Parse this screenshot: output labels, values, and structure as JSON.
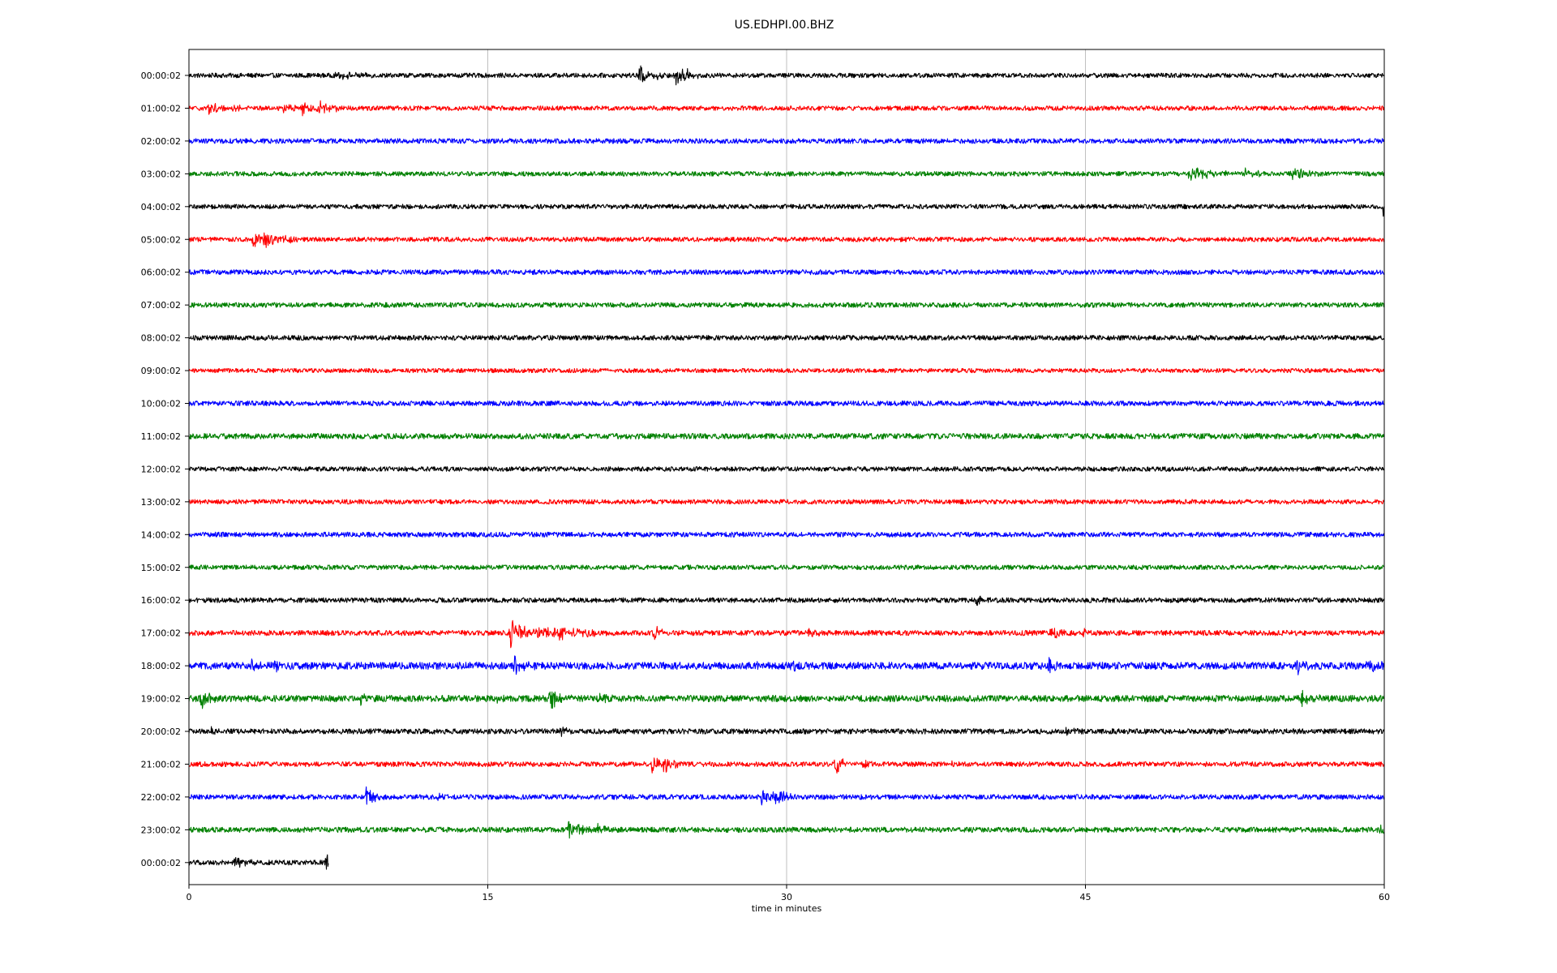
{
  "chart_data": {
    "type": "line",
    "title": "US.EDHPI.00.BHZ",
    "xlabel": "time in minutes",
    "ylabel": "",
    "xlim": [
      0,
      60
    ],
    "x_ticks": [
      "0",
      "15",
      "30",
      "45",
      "60"
    ],
    "x_tick_values": [
      0,
      15,
      30,
      45,
      60
    ],
    "grid": "vertical lines at x ticks",
    "trace_colors": [
      "#000000",
      "#ff0000",
      "#0000ff",
      "#008000"
    ],
    "trace_amplitude_units": "relative (0-1, 1 ≈ half of row spacing)",
    "rows": [
      {
        "label": "00:00:02",
        "color": "#000000",
        "noise": 0.14,
        "end_minute": 60,
        "events": [
          {
            "t": 22.6,
            "amp": 0.75,
            "dur": 0.3
          },
          {
            "t": 23.5,
            "amp": 0.3,
            "dur": 0.5
          },
          {
            "t": 24.4,
            "amp": 0.8,
            "dur": 0.4
          },
          {
            "t": 24.8,
            "amp": 0.45,
            "dur": 0.4
          },
          {
            "t": 7.4,
            "amp": 0.18,
            "dur": 1.0
          }
        ]
      },
      {
        "label": "01:00:02",
        "color": "#ff0000",
        "noise": 0.14,
        "end_minute": 60,
        "events": [
          {
            "t": 1.0,
            "amp": 0.45,
            "dur": 0.4
          },
          {
            "t": 2.2,
            "amp": 0.25,
            "dur": 0.3
          },
          {
            "t": 4.7,
            "amp": 0.3,
            "dur": 0.6
          },
          {
            "t": 5.7,
            "amp": 0.4,
            "dur": 0.5
          },
          {
            "t": 6.5,
            "amp": 0.5,
            "dur": 0.6
          }
        ]
      },
      {
        "label": "02:00:02",
        "color": "#0000ff",
        "noise": 0.15,
        "end_minute": 60,
        "events": []
      },
      {
        "label": "03:00:02",
        "color": "#008000",
        "noise": 0.14,
        "end_minute": 60,
        "events": [
          {
            "t": 50.2,
            "amp": 0.6,
            "dur": 0.8
          },
          {
            "t": 53.0,
            "amp": 0.3,
            "dur": 0.5
          },
          {
            "t": 55.3,
            "amp": 0.55,
            "dur": 0.6
          }
        ]
      },
      {
        "label": "04:00:02",
        "color": "#000000",
        "noise": 0.14,
        "end_minute": 60,
        "events": [
          {
            "t": 59.9,
            "amp": 0.55,
            "dur": 0.3
          }
        ]
      },
      {
        "label": "05:00:02",
        "color": "#ff0000",
        "noise": 0.14,
        "end_minute": 60,
        "events": [
          {
            "t": 3.2,
            "amp": 0.5,
            "dur": 0.5
          },
          {
            "t": 3.7,
            "amp": 0.7,
            "dur": 0.7
          }
        ]
      },
      {
        "label": "06:00:02",
        "color": "#0000ff",
        "noise": 0.15,
        "end_minute": 60,
        "events": []
      },
      {
        "label": "07:00:02",
        "color": "#008000",
        "noise": 0.15,
        "end_minute": 60,
        "events": []
      },
      {
        "label": "08:00:02",
        "color": "#000000",
        "noise": 0.15,
        "end_minute": 60,
        "events": []
      },
      {
        "label": "09:00:02",
        "color": "#ff0000",
        "noise": 0.13,
        "end_minute": 60,
        "events": []
      },
      {
        "label": "10:00:02",
        "color": "#0000ff",
        "noise": 0.15,
        "end_minute": 60,
        "events": []
      },
      {
        "label": "11:00:02",
        "color": "#008000",
        "noise": 0.17,
        "end_minute": 60,
        "events": []
      },
      {
        "label": "12:00:02",
        "color": "#000000",
        "noise": 0.14,
        "end_minute": 60,
        "events": []
      },
      {
        "label": "13:00:02",
        "color": "#ff0000",
        "noise": 0.14,
        "end_minute": 60,
        "events": []
      },
      {
        "label": "14:00:02",
        "color": "#0000ff",
        "noise": 0.15,
        "end_minute": 60,
        "events": []
      },
      {
        "label": "15:00:02",
        "color": "#008000",
        "noise": 0.14,
        "end_minute": 60,
        "events": []
      },
      {
        "label": "16:00:02",
        "color": "#000000",
        "noise": 0.15,
        "end_minute": 60,
        "events": [
          {
            "t": 39.5,
            "amp": 0.4,
            "dur": 0.3
          }
        ]
      },
      {
        "label": "17:00:02",
        "color": "#ff0000",
        "noise": 0.16,
        "end_minute": 60,
        "events": [
          {
            "t": 16.1,
            "amp": 1.0,
            "dur": 0.6
          },
          {
            "t": 17.5,
            "amp": 0.45,
            "dur": 1.5
          },
          {
            "t": 18.6,
            "amp": 0.35,
            "dur": 0.8
          },
          {
            "t": 23.3,
            "amp": 0.5,
            "dur": 0.4
          },
          {
            "t": 31.0,
            "amp": 0.2,
            "dur": 0.6
          },
          {
            "t": 43.2,
            "amp": 0.45,
            "dur": 0.4
          },
          {
            "t": 44.8,
            "amp": 0.3,
            "dur": 0.3
          }
        ]
      },
      {
        "label": "18:00:02",
        "color": "#0000ff",
        "noise": 0.22,
        "end_minute": 60,
        "events": [
          {
            "t": 3.1,
            "amp": 0.35,
            "dur": 0.3
          },
          {
            "t": 4.3,
            "amp": 0.4,
            "dur": 0.3
          },
          {
            "t": 16.3,
            "amp": 0.55,
            "dur": 0.5
          },
          {
            "t": 28.2,
            "amp": 0.35,
            "dur": 0.3
          },
          {
            "t": 30.2,
            "amp": 0.35,
            "dur": 0.3
          },
          {
            "t": 43.1,
            "amp": 0.4,
            "dur": 0.4
          },
          {
            "t": 55.6,
            "amp": 0.5,
            "dur": 0.4
          },
          {
            "t": 59.1,
            "amp": 0.4,
            "dur": 0.5
          }
        ]
      },
      {
        "label": "19:00:02",
        "color": "#008000",
        "noise": 0.2,
        "end_minute": 60,
        "events": [
          {
            "t": 0.6,
            "amp": 0.65,
            "dur": 0.3
          },
          {
            "t": 8.6,
            "amp": 0.3,
            "dur": 0.3
          },
          {
            "t": 15.4,
            "amp": 0.3,
            "dur": 0.3
          },
          {
            "t": 18.1,
            "amp": 0.6,
            "dur": 0.5
          },
          {
            "t": 20.5,
            "amp": 0.3,
            "dur": 0.6
          },
          {
            "t": 55.8,
            "amp": 0.55,
            "dur": 0.4
          }
        ]
      },
      {
        "label": "20:00:02",
        "color": "#000000",
        "noise": 0.16,
        "end_minute": 60,
        "events": [
          {
            "t": 1.1,
            "amp": 0.25,
            "dur": 0.3
          },
          {
            "t": 18.6,
            "amp": 0.3,
            "dur": 0.3
          },
          {
            "t": 44.0,
            "amp": 0.25,
            "dur": 0.3
          }
        ]
      },
      {
        "label": "21:00:02",
        "color": "#ff0000",
        "noise": 0.15,
        "end_minute": 60,
        "events": [
          {
            "t": 23.2,
            "amp": 0.75,
            "dur": 0.4
          },
          {
            "t": 23.8,
            "amp": 0.65,
            "dur": 0.4
          },
          {
            "t": 32.4,
            "amp": 0.6,
            "dur": 0.4
          },
          {
            "t": 33.8,
            "amp": 0.35,
            "dur": 0.3
          },
          {
            "t": 38.0,
            "amp": 0.25,
            "dur": 0.3
          }
        ]
      },
      {
        "label": "22:00:02",
        "color": "#0000ff",
        "noise": 0.15,
        "end_minute": 60,
        "events": [
          {
            "t": 8.9,
            "amp": 0.65,
            "dur": 0.4
          },
          {
            "t": 12.3,
            "amp": 0.3,
            "dur": 0.3
          },
          {
            "t": 28.7,
            "amp": 0.55,
            "dur": 0.6
          },
          {
            "t": 29.4,
            "amp": 0.45,
            "dur": 0.5
          }
        ]
      },
      {
        "label": "23:00:02",
        "color": "#008000",
        "noise": 0.16,
        "end_minute": 60,
        "events": [
          {
            "t": 19.0,
            "amp": 0.65,
            "dur": 0.5
          },
          {
            "t": 20.5,
            "amp": 0.3,
            "dur": 0.5
          },
          {
            "t": 59.8,
            "amp": 0.3,
            "dur": 0.3
          }
        ]
      },
      {
        "label": "00:00:02",
        "color": "#000000",
        "noise": 0.15,
        "end_minute": 7,
        "events": [
          {
            "t": 2.3,
            "amp": 0.35,
            "dur": 0.4
          },
          {
            "t": 6.9,
            "amp": 0.7,
            "dur": 0.3
          }
        ]
      }
    ]
  }
}
